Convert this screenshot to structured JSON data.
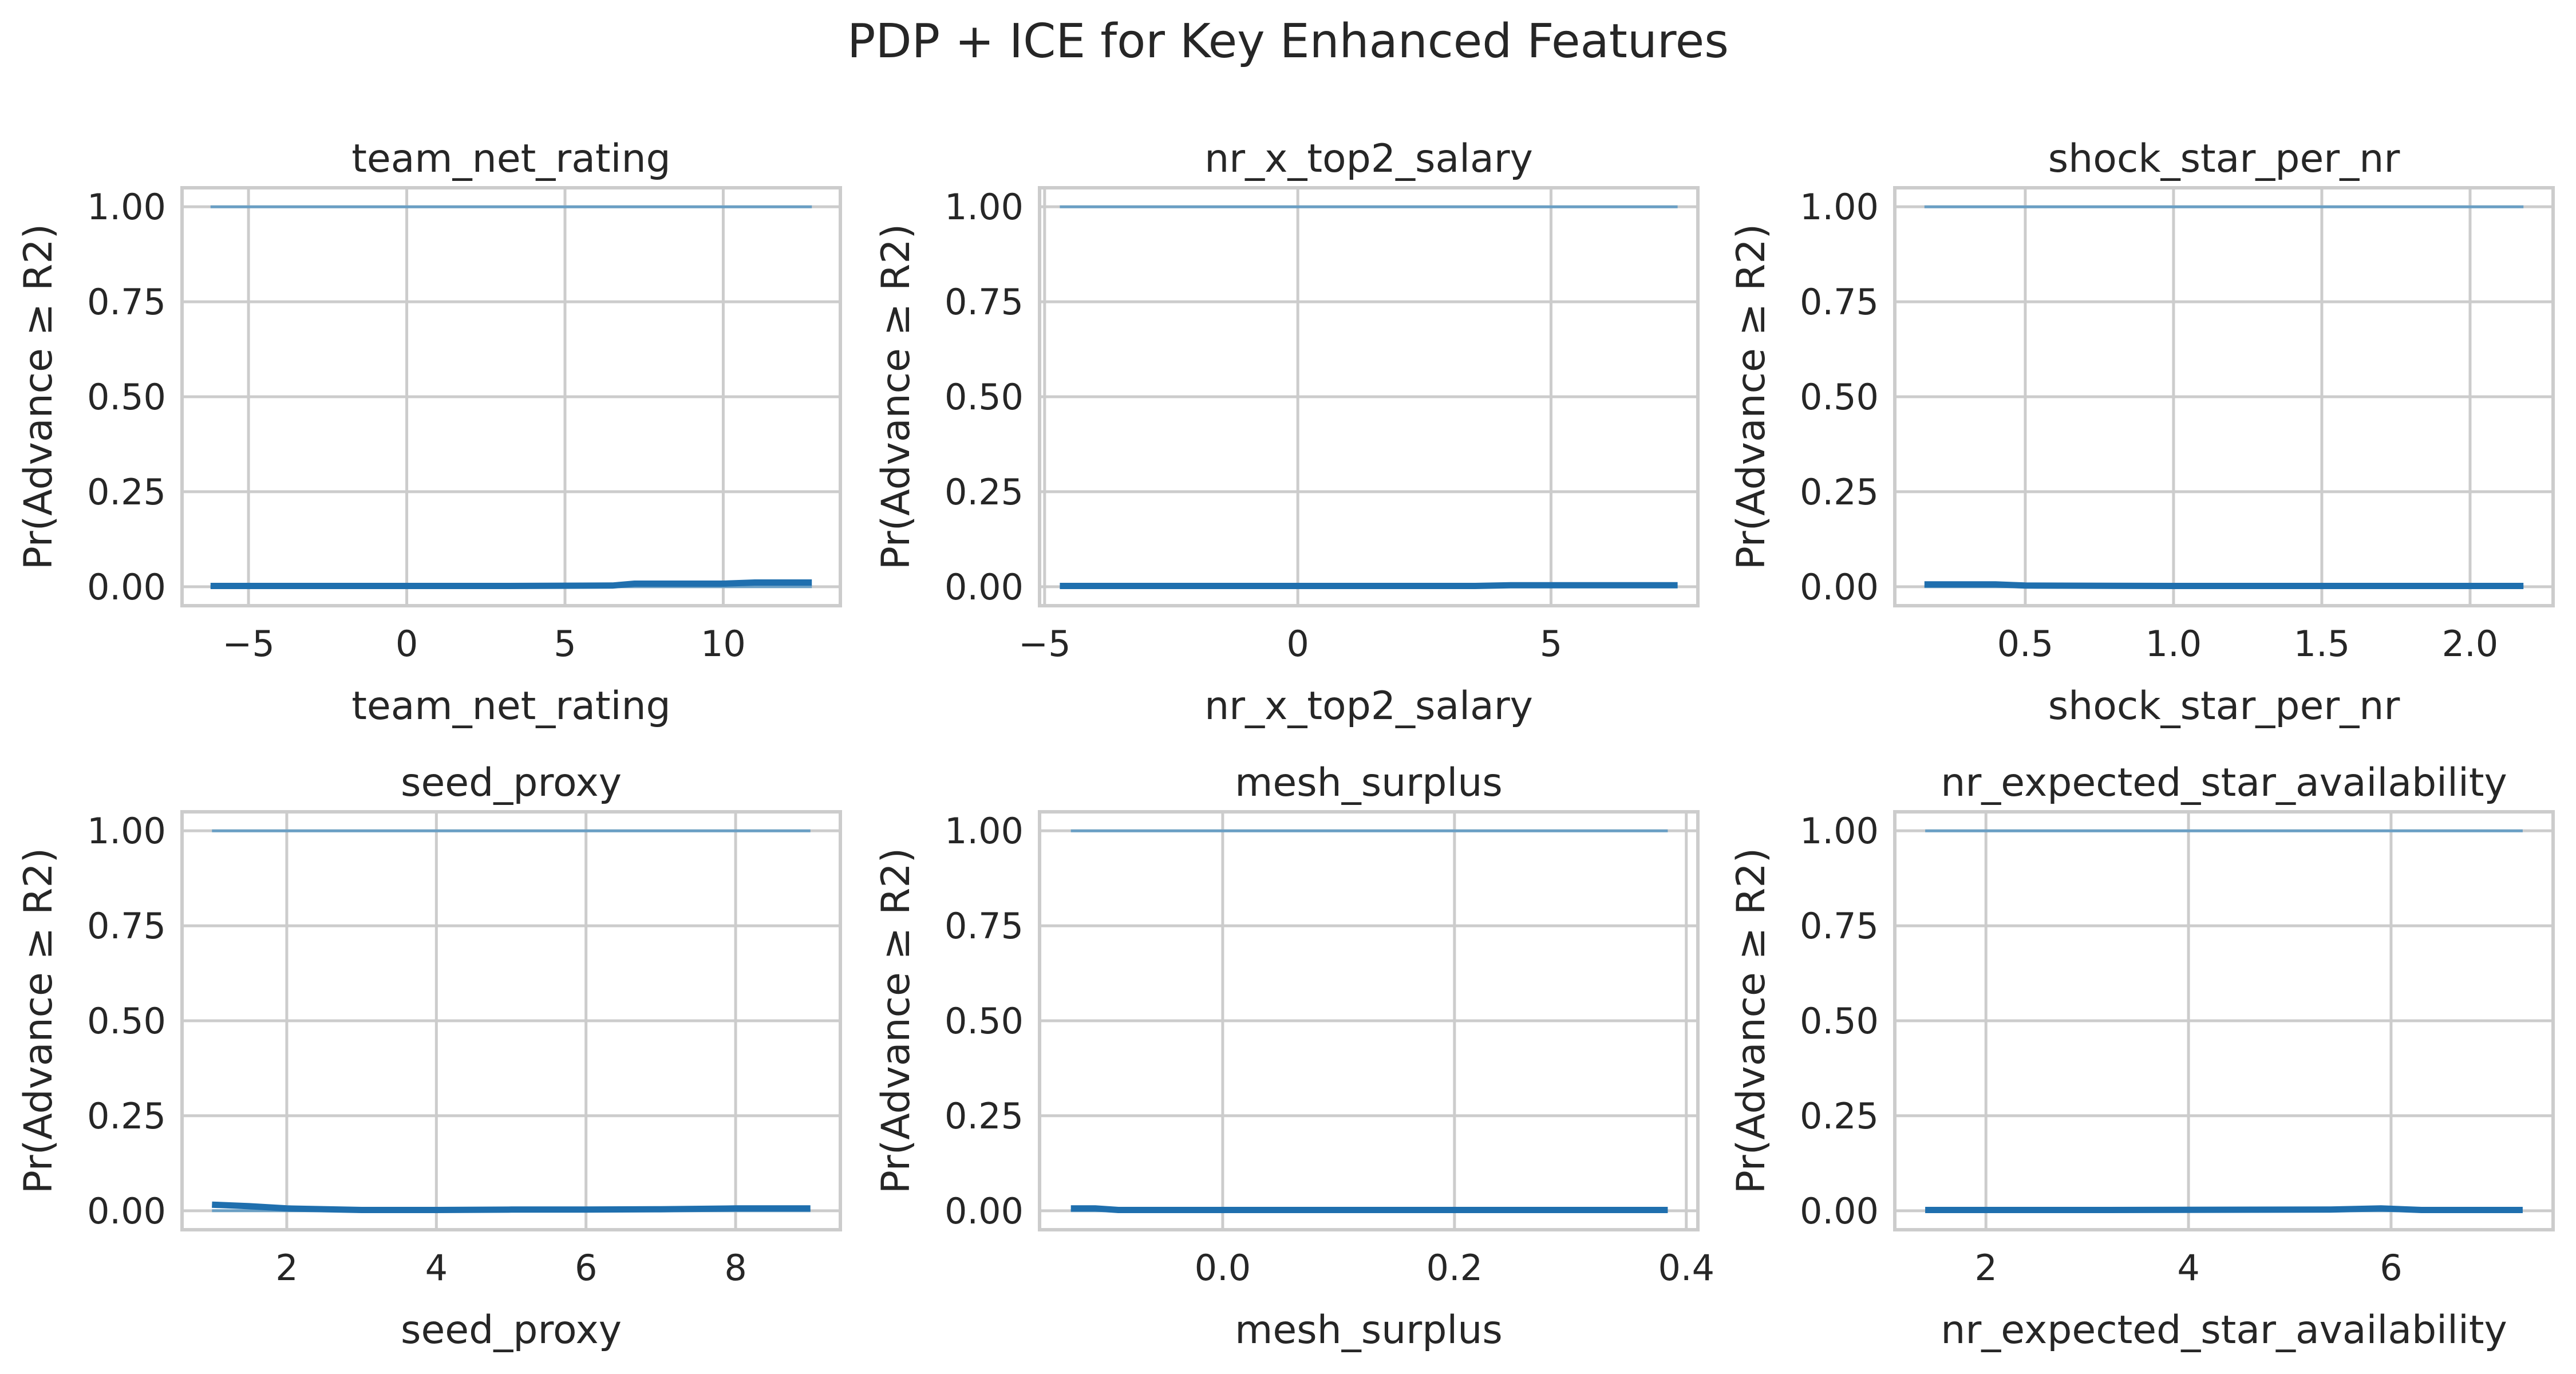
{
  "figure": {
    "suptitle": "PDP + ICE for Key Enhanced Features"
  },
  "style": {
    "ice_color": "#6a9fc4",
    "pdp_color": "#1f6fae",
    "grid_color": "#cccccc",
    "spine_color": "#cccccc",
    "text_color": "#262626"
  },
  "chart_data": [
    {
      "type": "line",
      "title": "team_net_rating",
      "xlabel": "team_net_rating",
      "ylabel": "Pr(Advance ≥ R2)",
      "xlim": [
        -7.1,
        13.7
      ],
      "ylim": [
        -0.05,
        1.05
      ],
      "x_ticks": [
        -5,
        0,
        5,
        10
      ],
      "x_tick_labels": [
        "−5",
        "0",
        "5",
        "10"
      ],
      "y_ticks": [
        0,
        0.25,
        0.5,
        0.75,
        1.0
      ],
      "y_tick_labels": [
        "0.00",
        "0.25",
        "0.50",
        "0.75",
        "1.00"
      ],
      "grid": true,
      "series": [
        {
          "role": "ice",
          "x": [
            -6.2,
            12.8
          ],
          "values": [
            1.0,
            1.0
          ]
        },
        {
          "role": "ice",
          "x": [
            -6.2,
            12.8
          ],
          "values": [
            0.0,
            0.0
          ]
        },
        {
          "role": "pdp",
          "x": [
            -6.2,
            -3,
            0,
            3,
            6.5,
            7.2,
            10,
            11,
            12.8
          ],
          "values": [
            0.002,
            0.002,
            0.002,
            0.002,
            0.003,
            0.008,
            0.008,
            0.011,
            0.011
          ]
        }
      ]
    },
    {
      "type": "line",
      "title": "nr_x_top2_salary",
      "xlabel": "nr_x_top2_salary",
      "ylabel": "Pr(Advance ≥ R2)",
      "xlim": [
        -5.1,
        7.9
      ],
      "ylim": [
        -0.05,
        1.05
      ],
      "x_ticks": [
        -5,
        0,
        5
      ],
      "x_tick_labels": [
        "−5",
        "0",
        "5"
      ],
      "y_ticks": [
        0,
        0.25,
        0.5,
        0.75,
        1.0
      ],
      "y_tick_labels": [
        "0.00",
        "0.25",
        "0.50",
        "0.75",
        "1.00"
      ],
      "grid": true,
      "series": [
        {
          "role": "ice",
          "x": [
            -4.7,
            7.5
          ],
          "values": [
            1.0,
            1.0
          ]
        },
        {
          "role": "ice",
          "x": [
            -4.7,
            7.5
          ],
          "values": [
            0.0,
            0.0
          ]
        },
        {
          "role": "pdp",
          "x": [
            -4.7,
            0,
            3.5,
            4.2,
            7.5
          ],
          "values": [
            0.002,
            0.002,
            0.002,
            0.004,
            0.004
          ]
        }
      ]
    },
    {
      "type": "line",
      "title": "shock_star_per_nr",
      "xlabel": "shock_star_per_nr",
      "ylabel": "Pr(Advance ≥ R2)",
      "xlim": [
        0.06,
        2.28
      ],
      "ylim": [
        -0.05,
        1.05
      ],
      "x_ticks": [
        0.5,
        1.0,
        1.5,
        2.0
      ],
      "x_tick_labels": [
        "0.5",
        "1.0",
        "1.5",
        "2.0"
      ],
      "y_ticks": [
        0,
        0.25,
        0.5,
        0.75,
        1.0
      ],
      "y_tick_labels": [
        "0.00",
        "0.25",
        "0.50",
        "0.75",
        "1.00"
      ],
      "grid": true,
      "series": [
        {
          "role": "ice",
          "x": [
            0.16,
            2.18
          ],
          "values": [
            1.0,
            1.0
          ]
        },
        {
          "role": "ice",
          "x": [
            0.16,
            2.18
          ],
          "values": [
            0.0,
            0.0
          ]
        },
        {
          "role": "pdp",
          "x": [
            0.16,
            0.4,
            0.5,
            1.0,
            1.5,
            2.18
          ],
          "values": [
            0.006,
            0.006,
            0.003,
            0.002,
            0.002,
            0.002
          ]
        }
      ]
    },
    {
      "type": "line",
      "title": "seed_proxy",
      "xlabel": "seed_proxy",
      "ylabel": "Pr(Advance ≥ R2)",
      "xlim": [
        0.6,
        9.4
      ],
      "ylim": [
        -0.05,
        1.05
      ],
      "x_ticks": [
        2,
        4,
        6,
        8
      ],
      "x_tick_labels": [
        "2",
        "4",
        "6",
        "8"
      ],
      "y_ticks": [
        0,
        0.25,
        0.5,
        0.75,
        1.0
      ],
      "y_tick_labels": [
        "0.00",
        "0.25",
        "0.50",
        "0.75",
        "1.00"
      ],
      "grid": true,
      "series": [
        {
          "role": "ice",
          "x": [
            1,
            9
          ],
          "values": [
            1.0,
            1.0
          ]
        },
        {
          "role": "ice",
          "x": [
            1,
            9
          ],
          "values": [
            0.0,
            0.0
          ]
        },
        {
          "role": "pdp",
          "x": [
            1,
            1.5,
            2,
            3,
            4,
            5,
            6,
            7,
            8,
            9
          ],
          "values": [
            0.016,
            0.012,
            0.006,
            0.002,
            0.002,
            0.003,
            0.003,
            0.004,
            0.006,
            0.006
          ]
        }
      ]
    },
    {
      "type": "line",
      "title": "mesh_surplus",
      "xlabel": "mesh_surplus",
      "ylabel": "Pr(Advance ≥ R2)",
      "xlim": [
        -0.158,
        0.41
      ],
      "ylim": [
        -0.05,
        1.05
      ],
      "x_ticks": [
        0.0,
        0.2,
        0.4
      ],
      "x_tick_labels": [
        "0.0",
        "0.2",
        "0.4"
      ],
      "y_ticks": [
        0,
        0.25,
        0.5,
        0.75,
        1.0
      ],
      "y_tick_labels": [
        "0.00",
        "0.25",
        "0.50",
        "0.75",
        "1.00"
      ],
      "grid": true,
      "series": [
        {
          "role": "ice",
          "x": [
            -0.131,
            0.384
          ],
          "values": [
            1.0,
            1.0
          ]
        },
        {
          "role": "ice",
          "x": [
            -0.131,
            0.384
          ],
          "values": [
            0.0,
            0.0
          ]
        },
        {
          "role": "pdp",
          "x": [
            -0.131,
            -0.11,
            -0.09,
            0.0,
            0.2,
            0.384
          ],
          "values": [
            0.006,
            0.006,
            0.002,
            0.002,
            0.002,
            0.002
          ]
        }
      ]
    },
    {
      "type": "line",
      "title": "nr_expected_star_availability",
      "xlabel": "nr_expected_star_availability",
      "ylabel": "Pr(Advance ≥ R2)",
      "xlim": [
        1.1,
        7.6
      ],
      "ylim": [
        -0.05,
        1.05
      ],
      "x_ticks": [
        2,
        4,
        6
      ],
      "x_tick_labels": [
        "2",
        "4",
        "6"
      ],
      "y_ticks": [
        0,
        0.25,
        0.5,
        0.75,
        1.0
      ],
      "y_tick_labels": [
        "0.00",
        "0.25",
        "0.50",
        "0.75",
        "1.00"
      ],
      "grid": true,
      "series": [
        {
          "role": "ice",
          "x": [
            1.4,
            7.3
          ],
          "values": [
            1.0,
            1.0
          ]
        },
        {
          "role": "ice",
          "x": [
            1.4,
            7.3
          ],
          "values": [
            0.0,
            0.0
          ]
        },
        {
          "role": "pdp",
          "x": [
            1.4,
            3,
            5.4,
            5.9,
            6.3,
            7.3
          ],
          "values": [
            0.002,
            0.002,
            0.003,
            0.006,
            0.002,
            0.002
          ]
        }
      ]
    }
  ]
}
